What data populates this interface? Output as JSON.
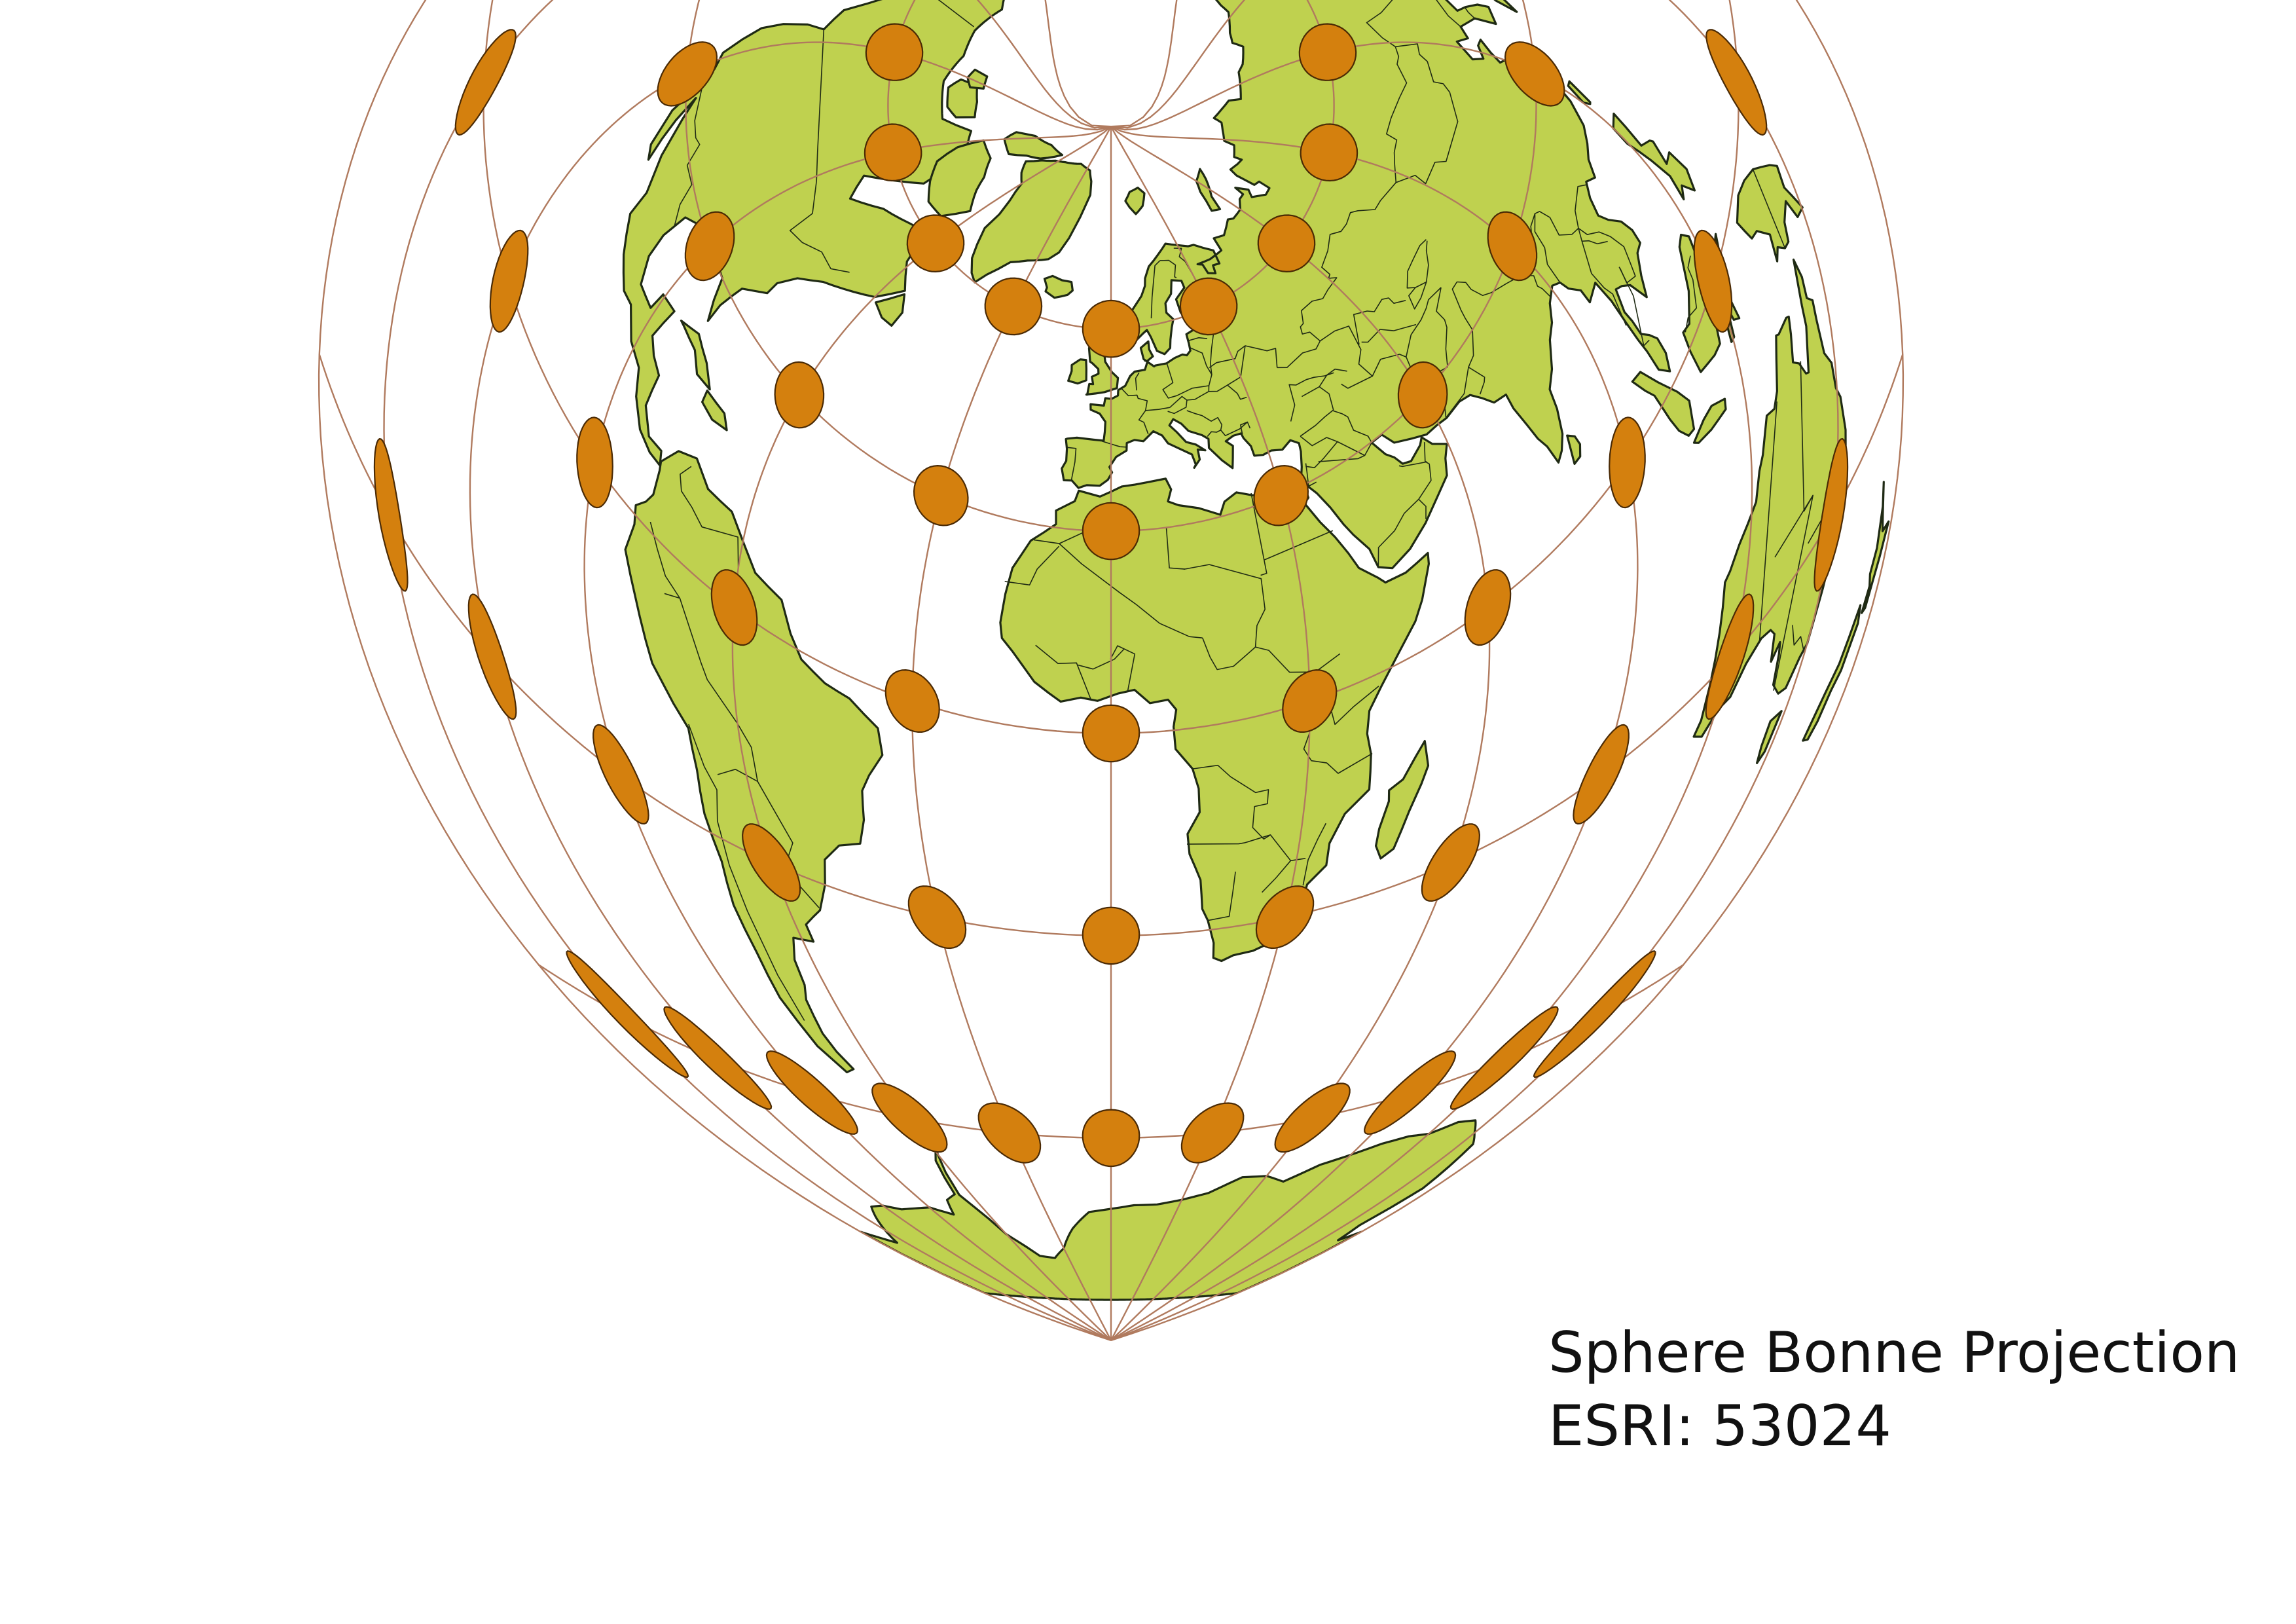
{
  "map": {
    "title": "Sphere Bonne Projection",
    "code_label": "ESRI: 53024",
    "projection": "bonne",
    "standard_parallel_deg": 60,
    "central_meridian_deg": 0,
    "graticule_step_deg": 30,
    "indicatrix_step_deg": 30,
    "colors": {
      "land": "#bfd14f",
      "coastline": "#1f2a14",
      "graticule": "#b07a5e",
      "indicatrix_fill": "#d4800e",
      "indicatrix_stroke": "#4a2a05",
      "background": "#ffffff"
    }
  }
}
